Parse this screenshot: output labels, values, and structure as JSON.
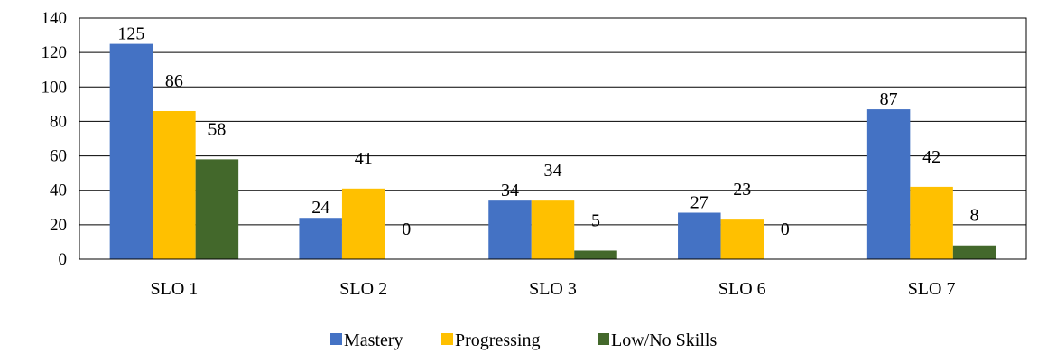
{
  "chart_data": {
    "type": "bar",
    "title": "",
    "xlabel": "",
    "ylabel": "",
    "ylim": [
      0,
      140
    ],
    "yticks": [
      0,
      20,
      40,
      60,
      80,
      100,
      120,
      140
    ],
    "grid": true,
    "legend_position": "bottom",
    "categories": [
      "SLO 1",
      "SLO 2",
      "SLO 3",
      "SLO 6",
      "SLO 7"
    ],
    "series": [
      {
        "name": "Mastery",
        "color": "#4472C4",
        "values": [
          125,
          24,
          34,
          27,
          87
        ]
      },
      {
        "name": "Progressing",
        "color": "#FFC000",
        "values": [
          86,
          41,
          34,
          23,
          42
        ]
      },
      {
        "name": "Low/No Skills",
        "color": "#43682B",
        "values": [
          58,
          0,
          5,
          0,
          8
        ]
      }
    ]
  }
}
